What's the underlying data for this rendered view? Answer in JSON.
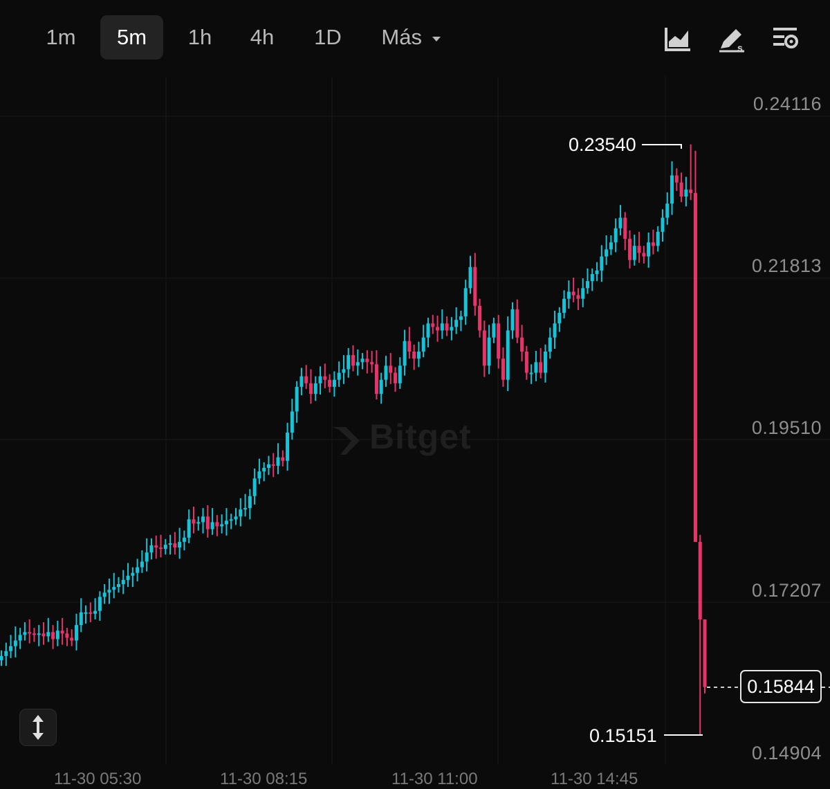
{
  "toolbar": {
    "timeframes": [
      "1m",
      "5m",
      "1h",
      "4h",
      "1D"
    ],
    "active": "5m",
    "more_label": "Más",
    "icons": [
      "chart-type-icon",
      "drawing-tools-icon",
      "indicator-settings-icon"
    ]
  },
  "watermark": "Bitget",
  "price_axis": [
    "0.24116",
    "0.21813",
    "0.19510",
    "0.17207",
    "0.14904"
  ],
  "high_marker": "0.23540",
  "low_marker": "0.15151",
  "current_price": "0.15844",
  "time_axis": [
    "11-30 05:30",
    "11-30 08:15",
    "11-30 11:00",
    "11-30 14:45"
  ],
  "colors": {
    "up": "#17c3d8",
    "down": "#e8346a",
    "background": "#0b0b0b"
  },
  "chart_data": {
    "type": "candlestick",
    "interval": "5m",
    "ylim": [
      0.14904,
      0.24116
    ],
    "high": 0.2354,
    "low": 0.15151,
    "last": 0.15844,
    "close_series": [
      0.1628,
      0.1635,
      0.1642,
      0.165,
      0.1658,
      0.1662,
      0.166,
      0.1658,
      0.166,
      0.1656,
      0.1662,
      0.1652,
      0.1664,
      0.166,
      0.1654,
      0.165,
      0.1672,
      0.169,
      0.169,
      0.1688,
      0.1692,
      0.1712,
      0.1718,
      0.1722,
      0.1726,
      0.173,
      0.1736,
      0.1742,
      0.1746,
      0.1754,
      0.1762,
      0.1775,
      0.1785,
      0.1782,
      0.178,
      0.1786,
      0.1788,
      0.1782,
      0.179,
      0.1796,
      0.1822,
      0.1816,
      0.1818,
      0.1826,
      0.1808,
      0.1818,
      0.1812,
      0.1815,
      0.182,
      0.1822,
      0.1826,
      0.1836,
      0.1838,
      0.1855,
      0.188,
      0.189,
      0.1895,
      0.19,
      0.1898,
      0.191,
      0.1905,
      0.1945,
      0.1975,
      0.201,
      0.2025,
      0.2015,
      0.2,
      0.2015,
      0.2025,
      0.202,
      0.201,
      0.202,
      0.203,
      0.2035,
      0.2055,
      0.204,
      0.2045,
      0.205,
      0.2045,
      0.2042,
      0.2,
      0.202,
      0.204,
      0.203,
      0.2015,
      0.204,
      0.2075,
      0.206,
      0.205,
      0.206,
      0.208,
      0.21,
      0.2095,
      0.209,
      0.21,
      0.209,
      0.2095,
      0.2105,
      0.211,
      0.215,
      0.218,
      0.2125,
      0.209,
      0.204,
      0.208,
      0.21,
      0.205,
      0.202,
      0.209,
      0.212,
      0.208,
      0.206,
      0.203,
      0.203,
      0.2045,
      0.203,
      0.206,
      0.208,
      0.21,
      0.2115,
      0.2135,
      0.2145,
      0.214,
      0.2135,
      0.215,
      0.216,
      0.217,
      0.2175,
      0.2195,
      0.2205,
      0.2215,
      0.2235,
      0.225,
      0.222,
      0.219,
      0.221,
      0.22,
      0.2195,
      0.2215,
      0.221,
      0.223,
      0.225,
      0.227,
      0.231,
      0.23,
      0.228,
      0.229,
      0.2285,
      0.179,
      0.168,
      0.1584
    ]
  }
}
